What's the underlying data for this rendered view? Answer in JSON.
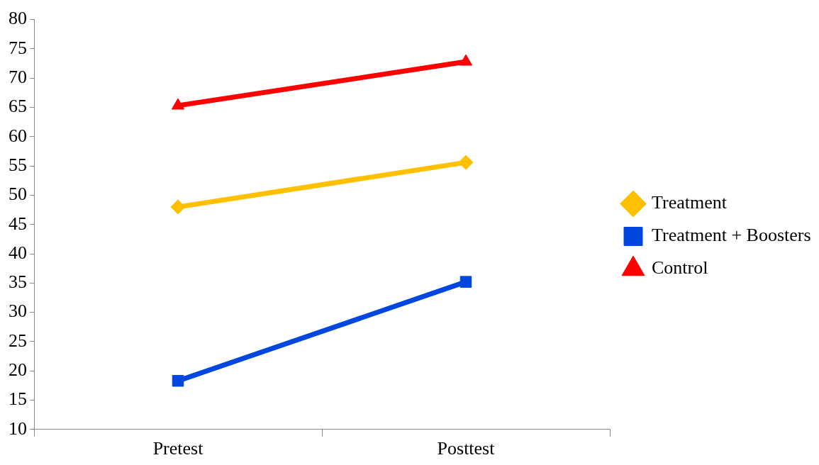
{
  "chart_data": {
    "type": "line",
    "categories": [
      "Pretest",
      "Posttest"
    ],
    "series": [
      {
        "name": "Treatment",
        "color": "#ffc000",
        "values": [
          48,
          55.6
        ],
        "marker": "diamond"
      },
      {
        "name": "Treatment + Boosters",
        "color": "#0047e0",
        "values": [
          18.3,
          35.2
        ],
        "marker": "square"
      },
      {
        "name": "Control",
        "color": "#ff0000",
        "values": [
          65.3,
          72.8
        ],
        "marker": "triangle"
      }
    ],
    "ylim": [
      10,
      80
    ],
    "yticks": [
      10,
      15,
      20,
      25,
      30,
      35,
      40,
      45,
      50,
      55,
      60,
      65,
      70,
      75,
      80
    ],
    "grid": false,
    "legend": "right",
    "line_style": "solid"
  }
}
